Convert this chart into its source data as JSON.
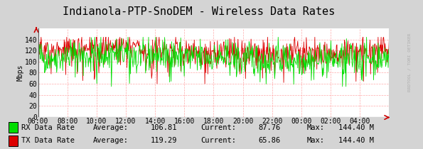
{
  "title": "Indianola-PTP-SnoDEM - Wireless Data Rates",
  "ylabel": "Mbps",
  "background_color": "#d4d4d4",
  "plot_bg_color": "#ffffff",
  "grid_color": "#ffaaaa",
  "xlim": [
    0,
    24
  ],
  "ylim": [
    0,
    160
  ],
  "yticks": [
    0,
    20,
    40,
    60,
    80,
    100,
    120,
    140
  ],
  "xtick_labels": [
    "06:00",
    "08:00",
    "10:00",
    "12:00",
    "14:00",
    "16:00",
    "18:00",
    "20:00",
    "22:00",
    "00:00",
    "02:00",
    "04:00"
  ],
  "rx_color": "#00dd00",
  "tx_color": "#dd0000",
  "rx_label": "RX Data Rate",
  "tx_label": "TX Data Rate",
  "rx_avg": "106.81",
  "rx_cur": "87.76",
  "rx_max": "144.40 M",
  "tx_avg": "119.29",
  "tx_cur": "65.86",
  "tx_max": "144.40 M",
  "watermark": "RRDTOOL / TOBI OETIKER",
  "title_fontsize": 11,
  "axis_fontsize": 7,
  "legend_fontsize": 7.5
}
